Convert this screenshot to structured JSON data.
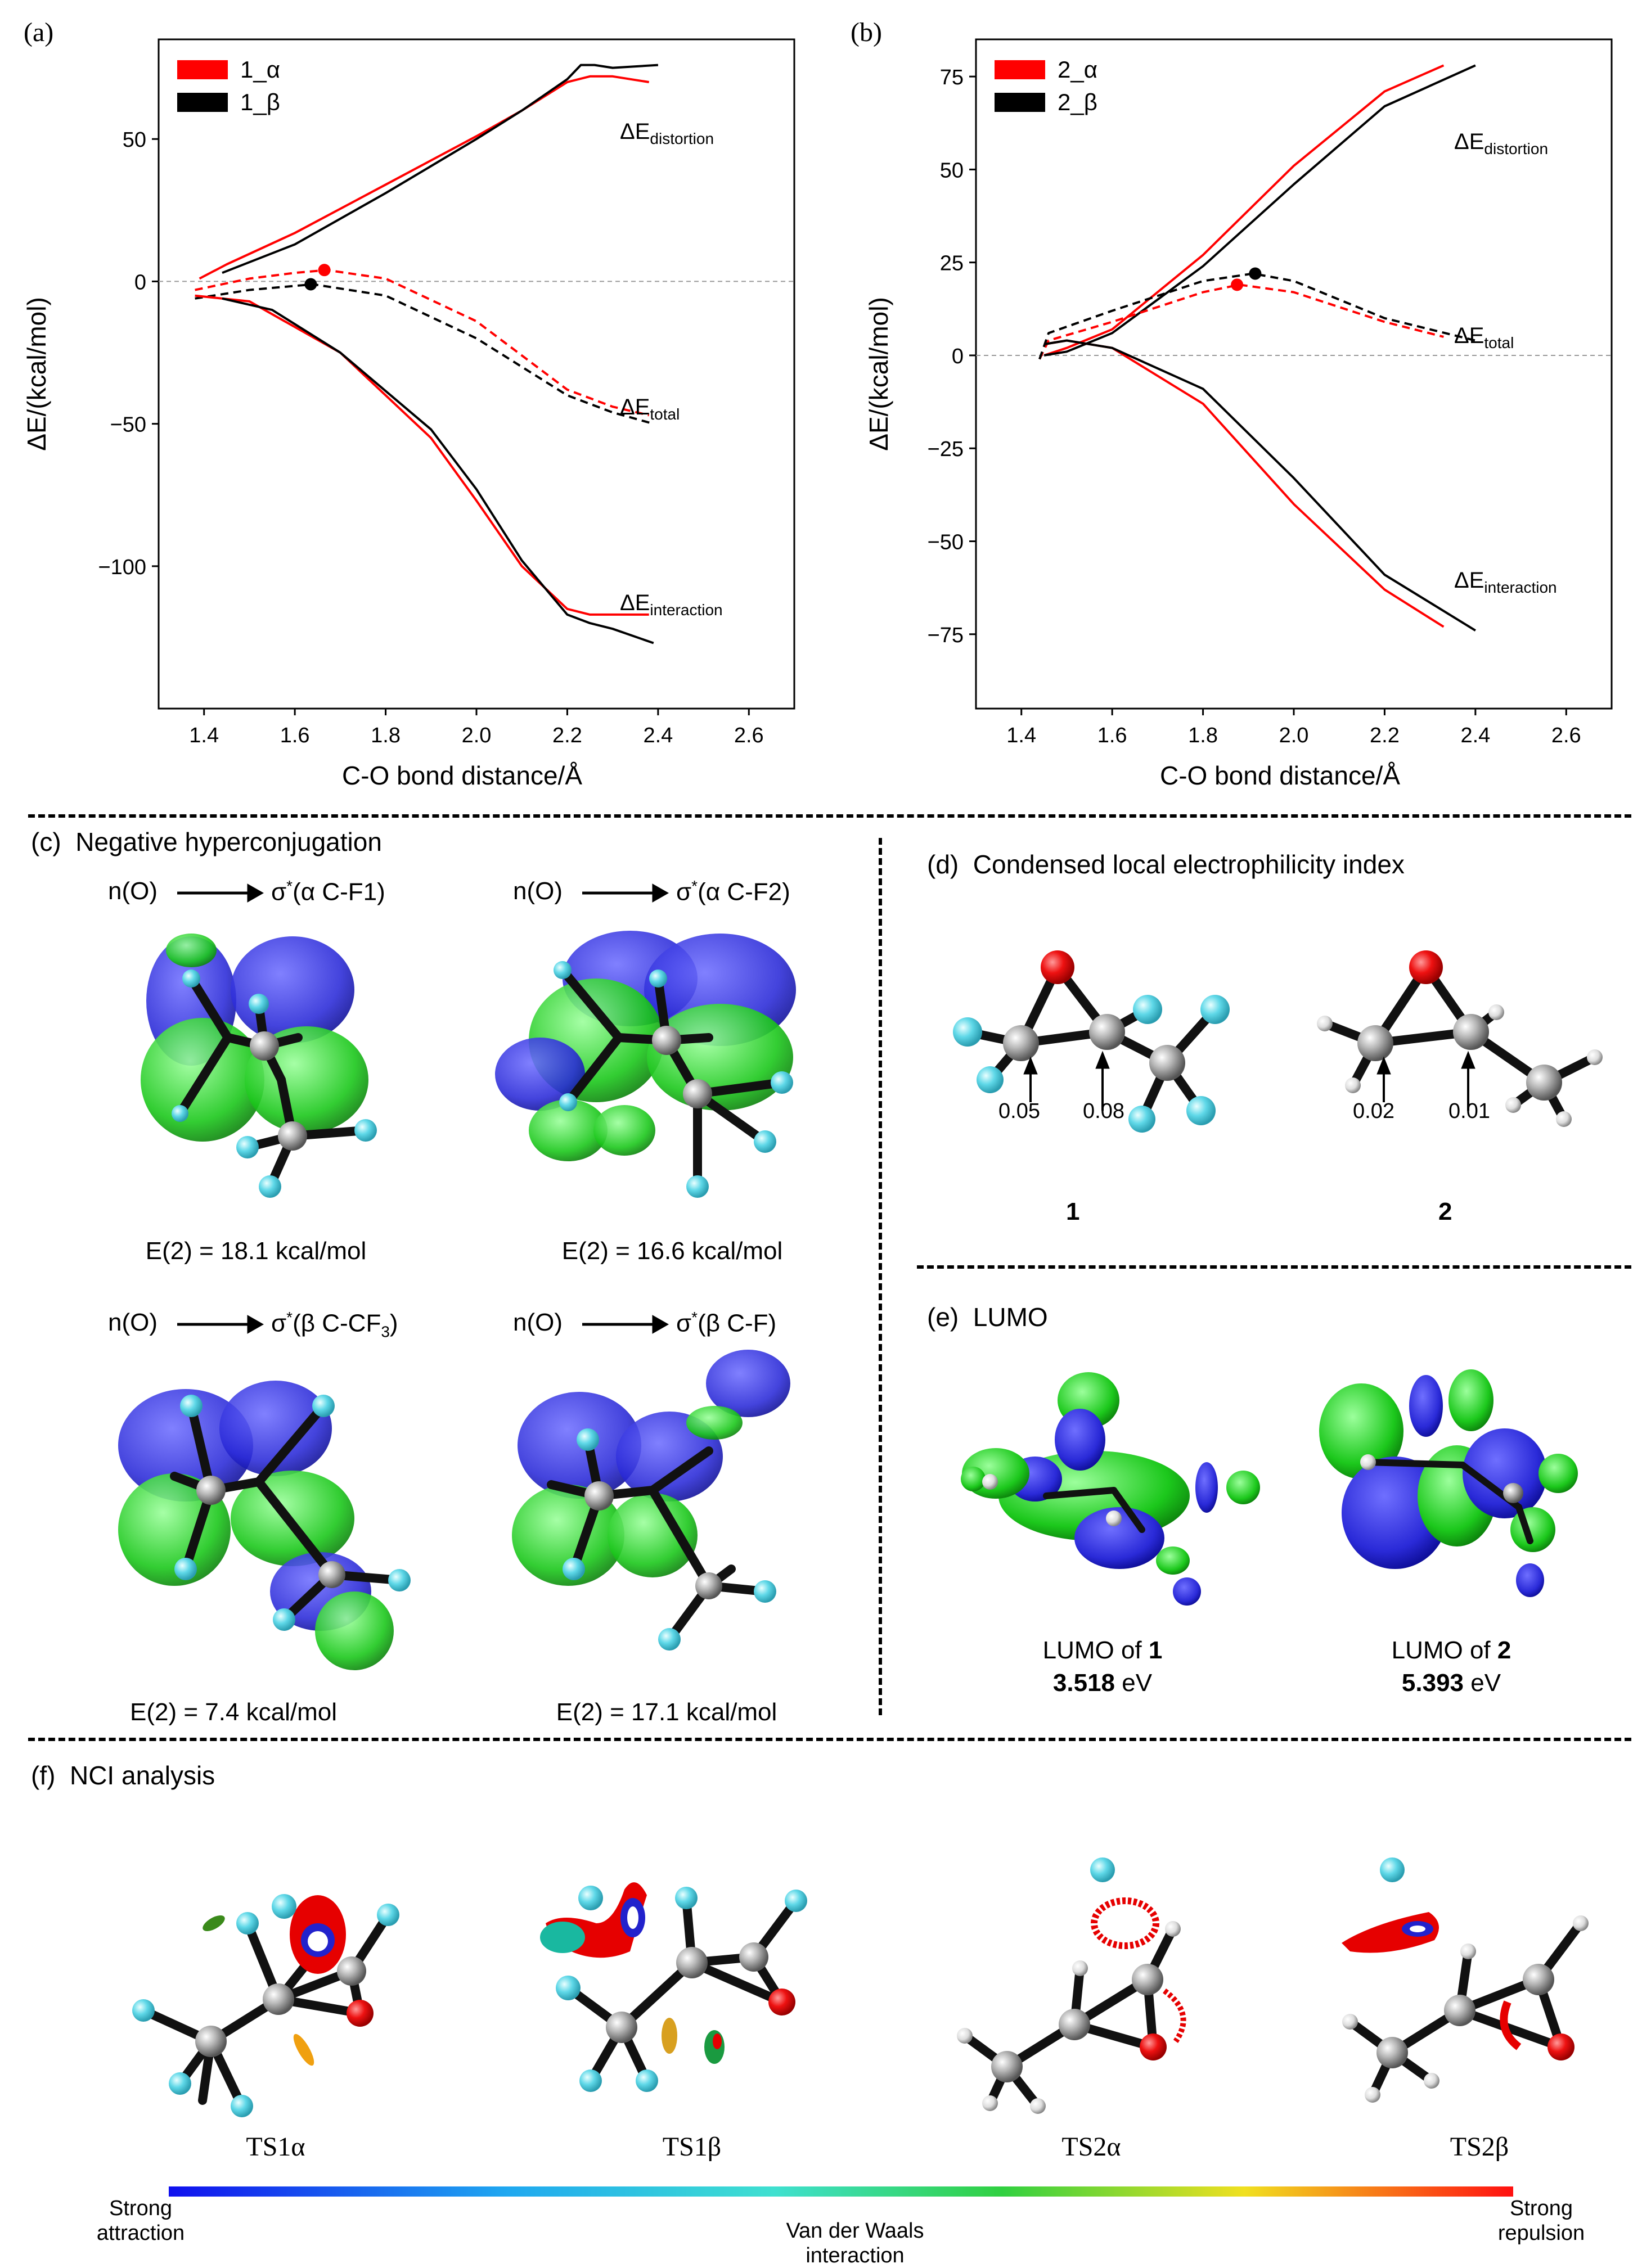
{
  "panel_a": {
    "label": "(a)",
    "legend": [
      {
        "name": "1_α",
        "color": "#ff0000"
      },
      {
        "name": "1_β",
        "color": "#000000"
      }
    ],
    "annotations": {
      "distortion_base": "ΔE",
      "distortion_sub": "distortion",
      "total_base": "ΔE",
      "total_sub": "total",
      "interaction_base": "ΔE",
      "interaction_sub": "interaction"
    }
  },
  "panel_b": {
    "label": "(b)",
    "legend": [
      {
        "name": "2_α",
        "color": "#ff0000"
      },
      {
        "name": "2_β",
        "color": "#000000"
      }
    ],
    "annotations": {
      "distortion_base": "ΔE",
      "distortion_sub": "distortion",
      "total_base": "ΔE",
      "total_sub": "total",
      "interaction_base": "ΔE",
      "interaction_sub": "interaction"
    }
  },
  "chart_data": [
    {
      "type": "line",
      "title": "",
      "xlabel": "C-O bond distance/Å",
      "ylabel": "ΔE/(kcal/mol)",
      "xlim": [
        1.3,
        2.7
      ],
      "ylim": [
        -150,
        85
      ],
      "xticks": [
        "1.4",
        "1.6",
        "1.8",
        "2.0",
        "2.2",
        "2.4",
        "2.6"
      ],
      "yticks": [
        "50",
        "0",
        "−50",
        "−100"
      ],
      "ytick_values": [
        50,
        0,
        -50,
        -100
      ],
      "series": [
        {
          "name": "1_α distortion",
          "color": "#ff0000",
          "style": "solid",
          "x": [
            1.39,
            1.45,
            1.6,
            1.8,
            2.0,
            2.1,
            2.2,
            2.25,
            2.3,
            2.38
          ],
          "y": [
            1,
            6,
            17,
            34,
            51,
            60,
            70,
            72,
            72,
            70
          ]
        },
        {
          "name": "1_β distortion",
          "color": "#000000",
          "style": "solid",
          "x": [
            1.44,
            1.6,
            1.8,
            2.0,
            2.1,
            2.2,
            2.23,
            2.26,
            2.3,
            2.4
          ],
          "y": [
            3,
            13,
            31,
            50,
            60,
            71,
            76,
            76,
            75,
            76
          ]
        },
        {
          "name": "1_α total",
          "color": "#ff0000",
          "style": "dashed",
          "x": [
            1.38,
            1.5,
            1.6,
            1.67,
            1.8,
            2.0,
            2.2,
            2.3,
            2.38
          ],
          "y": [
            -3,
            1,
            3,
            4,
            1,
            -14,
            -38,
            -44,
            -47
          ]
        },
        {
          "name": "1_β total",
          "color": "#000000",
          "style": "dashed",
          "x": [
            1.38,
            1.5,
            1.64,
            1.8,
            2.0,
            2.2,
            2.3,
            2.39
          ],
          "y": [
            -6,
            -3,
            -1,
            -5,
            -20,
            -40,
            -46,
            -50
          ]
        },
        {
          "name": "1_α interaction",
          "color": "#ff0000",
          "style": "solid",
          "x": [
            1.38,
            1.5,
            1.7,
            1.9,
            2.0,
            2.1,
            2.2,
            2.25,
            2.3,
            2.38
          ],
          "y": [
            -5,
            -7,
            -25,
            -55,
            -77,
            -100,
            -115,
            -117,
            -117,
            -117
          ]
        },
        {
          "name": "1_β interaction",
          "color": "#000000",
          "style": "solid",
          "x": [
            1.44,
            1.55,
            1.7,
            1.9,
            2.0,
            2.1,
            2.2,
            2.25,
            2.3,
            2.39
          ],
          "y": [
            -6,
            -10,
            -25,
            -52,
            -73,
            -98,
            -117,
            -120,
            -122,
            -127
          ]
        }
      ],
      "points": [
        {
          "name": "1_α TS",
          "color": "#ff0000",
          "x": 1.665,
          "y": 4
        },
        {
          "name": "1_β TS",
          "color": "#000000",
          "x": 1.635,
          "y": -1
        }
      ]
    },
    {
      "type": "line",
      "title": "",
      "xlabel": "C-O bond distance/Å",
      "ylabel": "ΔE/(kcal/mol)",
      "xlim": [
        1.3,
        2.7
      ],
      "ylim": [
        -95,
        85
      ],
      "xticks": [
        "1.4",
        "1.6",
        "1.8",
        "2.0",
        "2.2",
        "2.4",
        "2.6"
      ],
      "yticks": [
        "75",
        "50",
        "25",
        "0",
        "−25",
        "−50",
        "−75"
      ],
      "ytick_values": [
        75,
        50,
        25,
        0,
        -25,
        -50,
        -75
      ],
      "series": [
        {
          "name": "2_α distortion",
          "color": "#ff0000",
          "style": "solid",
          "x": [
            1.45,
            1.5,
            1.6,
            1.8,
            2.0,
            2.2,
            2.33
          ],
          "y": [
            0,
            2,
            7,
            27,
            51,
            71,
            78
          ]
        },
        {
          "name": "2_β distortion",
          "color": "#000000",
          "style": "solid",
          "x": [
            1.45,
            1.5,
            1.6,
            1.8,
            2.0,
            2.2,
            2.4
          ],
          "y": [
            0,
            1,
            6,
            24,
            46,
            67,
            78
          ]
        },
        {
          "name": "2_α total",
          "color": "#ff0000",
          "style": "dashed",
          "x": [
            1.44,
            1.46,
            1.6,
            1.8,
            1.88,
            2.0,
            2.2,
            2.33
          ],
          "y": [
            -1,
            4,
            9,
            17,
            19,
            17,
            9,
            5
          ]
        },
        {
          "name": "2_β total",
          "color": "#000000",
          "style": "dashed",
          "x": [
            1.44,
            1.46,
            1.6,
            1.8,
            1.91,
            2.0,
            2.2,
            2.4
          ],
          "y": [
            -1,
            6,
            12,
            20,
            22,
            20,
            10,
            4
          ]
        },
        {
          "name": "2_α interaction",
          "color": "#ff0000",
          "style": "solid",
          "x": [
            1.45,
            1.5,
            1.6,
            1.8,
            2.0,
            2.2,
            2.33
          ],
          "y": [
            3,
            4,
            2,
            -13,
            -40,
            -63,
            -73
          ]
        },
        {
          "name": "2_β interaction",
          "color": "#000000",
          "style": "solid",
          "x": [
            1.45,
            1.5,
            1.6,
            1.8,
            2.0,
            2.2,
            2.4
          ],
          "y": [
            3,
            4,
            2,
            -9,
            -33,
            -59,
            -74
          ]
        }
      ],
      "points": [
        {
          "name": "2_α TS",
          "color": "#ff0000",
          "x": 1.875,
          "y": 19
        },
        {
          "name": "2_β TS",
          "color": "#000000",
          "x": 1.915,
          "y": 22
        }
      ]
    }
  ],
  "panel_c": {
    "label": "(c)",
    "title": "Negative hyperconjugation",
    "items": [
      {
        "donor": "n(O)",
        "acceptor_pre": "σ",
        "sup": "*",
        "acceptor_post": "(α C-F1)",
        "sub_tail": "",
        "end": "",
        "energy": "E(2) = 18.1 kcal/mol"
      },
      {
        "donor": "n(O)",
        "acceptor_pre": "σ",
        "sup": "*",
        "acceptor_post": "(α C-F2)",
        "sub_tail": "",
        "end": "",
        "energy": "E(2) = 16.6 kcal/mol"
      },
      {
        "donor": "n(O)",
        "acceptor_pre": "σ",
        "sup": "*",
        "acceptor_post": "(β C-CF",
        "sub_tail": "3",
        "end": ")",
        "energy": "E(2) = 7.4 kcal/mol"
      },
      {
        "donor": "n(O)",
        "acceptor_pre": "σ",
        "sup": "*",
        "acceptor_post": "(β C-F)",
        "sub_tail": "",
        "end": "",
        "energy": "E(2) = 17.1 kcal/mol"
      }
    ]
  },
  "panel_d": {
    "label": "(d)",
    "title": "Condensed local electrophilicity index",
    "values_1": [
      "0.05",
      "0.08"
    ],
    "values_2": [
      "0.02",
      "0.01"
    ],
    "compound_1": "1",
    "compound_2": "2"
  },
  "panel_e": {
    "label": "(e)",
    "title": "LUMO",
    "lumo_1_prefix": "LUMO of ",
    "lumo_1_id": "1",
    "lumo_1_value": "3.518",
    "lumo_2_prefix": "LUMO of ",
    "lumo_2_id": "2",
    "lumo_2_value": "5.393",
    "unit": " eV"
  },
  "panel_f": {
    "label": "(f)",
    "title": "NCI analysis",
    "structures": [
      "TS1α",
      "TS1β",
      "TS2α",
      "TS2β"
    ],
    "scale_left": [
      "Strong",
      "attraction"
    ],
    "scale_middle": [
      "Van der Waals",
      "interaction"
    ],
    "scale_right": [
      "Strong",
      "repulsion"
    ]
  }
}
